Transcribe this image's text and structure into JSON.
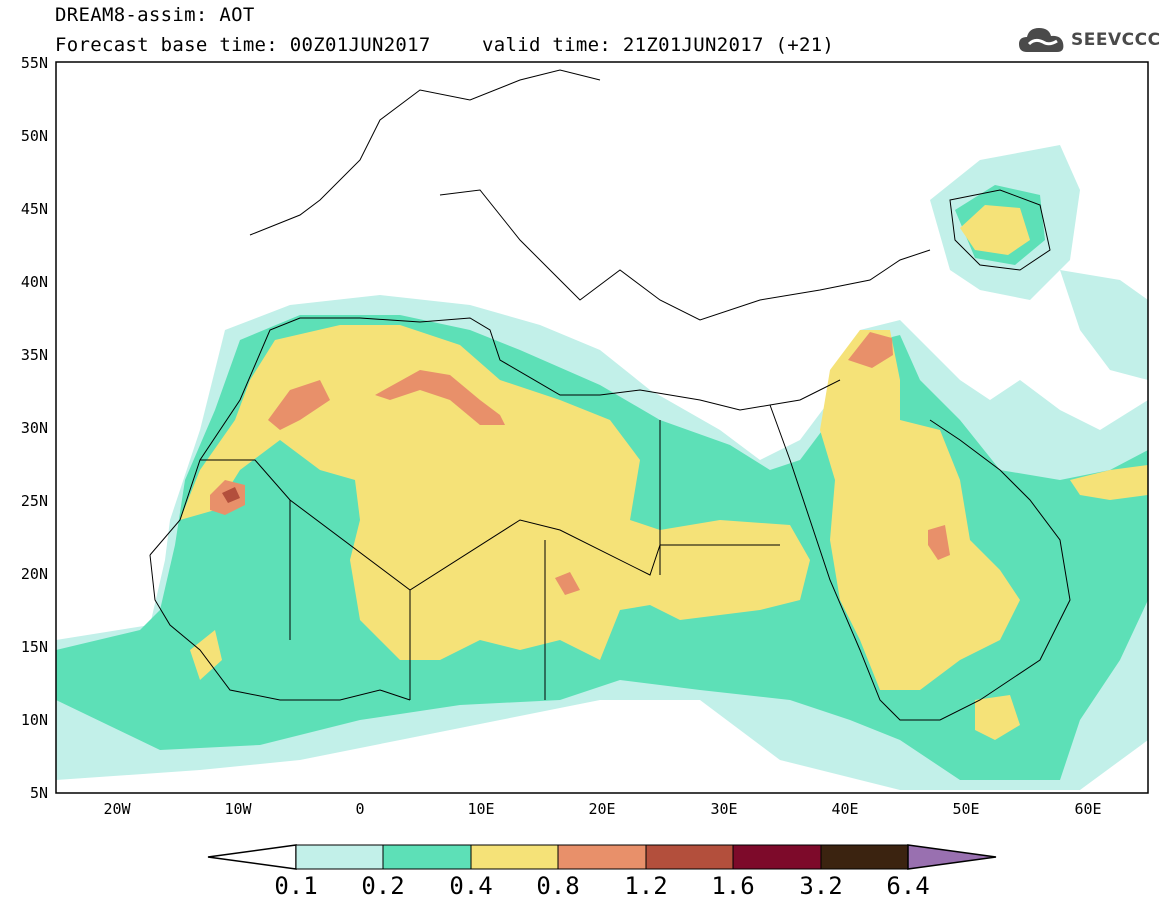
{
  "title": {
    "line1": "DREAM8-assim: AOT",
    "line2": "Forecast base time: 00Z01JUN2017",
    "valid": "valid time: 21Z01JUN2017 (+21)"
  },
  "logo": {
    "text": "SEEVCCC",
    "icon": "cloud-icon"
  },
  "axes": {
    "lat_labels": [
      "55N",
      "50N",
      "45N",
      "40N",
      "35N",
      "30N",
      "25N",
      "20N",
      "15N",
      "10N",
      "5N"
    ],
    "lon_labels": [
      "20W",
      "10W",
      "0",
      "10E",
      "20E",
      "30E",
      "40E",
      "50E",
      "60E"
    ]
  },
  "colorbar": {
    "labels": [
      "0.1",
      "0.2",
      "0.4",
      "0.8",
      "1.2",
      "1.6",
      "3.2",
      "6.4"
    ],
    "colors": [
      "#ffffff",
      "#c2f0e9",
      "#5de0b7",
      "#f5e278",
      "#e8906a",
      "#b34f3c",
      "#7d0a2a",
      "#3b2310",
      "#9970b0"
    ]
  },
  "colors": {
    "c01": "#c2f0e9",
    "c02": "#5de0b7",
    "c04": "#f5e278",
    "c08": "#e8906a",
    "c12": "#b34f3c"
  }
}
